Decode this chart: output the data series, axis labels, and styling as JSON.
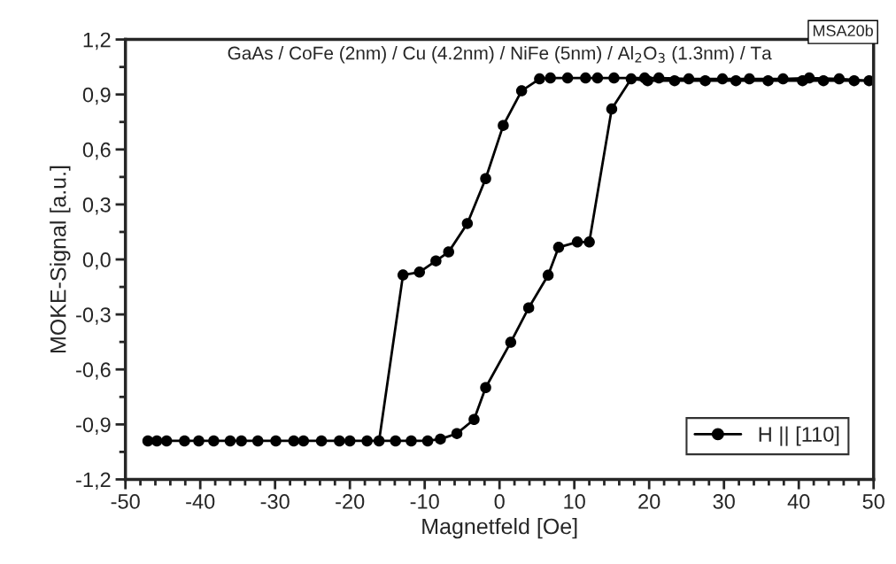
{
  "chart_data": {
    "type": "line",
    "title": "GaAs / CoFe (2nm) / Cu (4.2nm) / NiFe (5nm) / Al$_{2}$O$_{3}$ (1.3nm) / Ta",
    "xlabel": "Magnetfeld [Oe]",
    "ylabel": "MOKE-Signal [a.u.]",
    "annotations": [
      "MSA20b"
    ],
    "series": [
      {
        "name": "H || [110]",
        "color": "#000000",
        "x": [
          -47,
          -44.5,
          -40.2,
          -36,
          -32.3,
          -27.5,
          -23.8,
          -20,
          -13.9,
          -11.8,
          -9.6,
          -7.9,
          -5.7,
          -3.4,
          -1.85,
          1.5,
          3.9,
          6.5,
          7.9,
          10.4,
          12.0,
          15.0,
          17.6,
          19.8,
          23.4,
          27.5,
          31.6,
          35.9,
          40.5,
          43.3,
          47.4,
          49.4,
          45.4,
          41.4,
          37.9,
          33.4,
          29.8,
          25.3,
          21.3,
          19.4,
          15.3,
          13.1,
          11.5,
          9.1,
          6.8,
          5.35,
          2.95,
          0.5,
          -1.85,
          -4.3,
          -6.8,
          -8.5,
          -10.7,
          -12.9,
          -16.1,
          -17.7,
          -21.4,
          -26.2,
          -29.9,
          -34.5,
          -38.2,
          -42.1,
          -45.8
        ],
        "values": [
          -0.99,
          -0.99,
          -0.99,
          -0.99,
          -0.99,
          -0.99,
          -0.99,
          -0.99,
          -0.99,
          -0.99,
          -0.99,
          -0.98,
          -0.95,
          -0.873,
          -0.699,
          -0.452,
          -0.264,
          -0.086,
          0.066,
          0.095,
          0.095,
          0.821,
          0.985,
          0.975,
          0.975,
          0.975,
          0.975,
          0.975,
          0.975,
          0.975,
          0.975,
          0.975,
          0.985,
          0.99,
          0.985,
          0.985,
          0.985,
          0.985,
          0.99,
          0.99,
          0.99,
          0.99,
          0.99,
          0.99,
          0.99,
          0.985,
          0.92,
          0.731,
          0.441,
          0.196,
          0.041,
          -0.008,
          -0.069,
          -0.085,
          -0.99,
          -0.99,
          -0.99,
          -0.99,
          -0.99,
          -0.99,
          -0.99,
          -0.99,
          -0.99
        ]
      }
    ],
    "xlim": [
      -50,
      50
    ],
    "xticks": [
      -50,
      -40,
      -30,
      -20,
      -10,
      0,
      10,
      20,
      30,
      40,
      50
    ],
    "ylim": [
      -1.2,
      1.2
    ],
    "yticks": [
      {
        "value": -1.2,
        "label": "-1,2"
      },
      {
        "value": -0.9,
        "label": "-0,9"
      },
      {
        "value": -0.6,
        "label": "-0,6"
      },
      {
        "value": -0.3,
        "label": "-0,3"
      },
      {
        "value": 0,
        "label": "0,0"
      },
      {
        "value": 0.3,
        "label": "0,3"
      },
      {
        "value": 0.6,
        "label": "0,6"
      },
      {
        "value": 0.9,
        "label": "0,9"
      },
      {
        "value": 1.2,
        "label": "1,2"
      }
    ],
    "marker": "circle",
    "line_style": "solid",
    "grid": false,
    "legend": "bottom right"
  }
}
